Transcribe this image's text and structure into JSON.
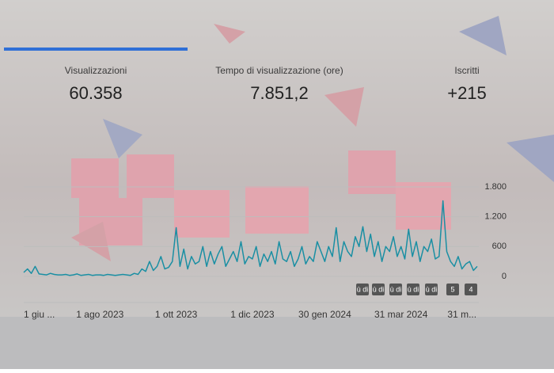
{
  "tabs": [
    {
      "label": "Visualizzazioni",
      "value": "60.358"
    },
    {
      "label": "Tempo di visualizzazione (ore)",
      "value": "7.851,2"
    },
    {
      "label": "Iscritti",
      "value": "+215"
    }
  ],
  "badges": [
    "ù di",
    "ù di",
    "ù di",
    "ù di",
    "ù di",
    "5",
    "4"
  ],
  "chart_data": {
    "type": "line",
    "color": "#1a8fa3",
    "grid": true,
    "ylim": [
      0,
      1800
    ],
    "yticks": [
      0,
      600,
      {
        "value": 1200,
        "label": "1.200"
      },
      {
        "value": 1800,
        "label": "1.800"
      }
    ],
    "categories": [
      "1 giu ...",
      null,
      null,
      null,
      null,
      null,
      null,
      null,
      null,
      null,
      null,
      null,
      null,
      null,
      null,
      null,
      null,
      null,
      null,
      null,
      "1 ago 2023",
      null,
      null,
      null,
      null,
      null,
      null,
      null,
      null,
      null,
      null,
      null,
      null,
      null,
      null,
      null,
      null,
      null,
      null,
      null,
      "1 ott 2023",
      null,
      null,
      null,
      null,
      null,
      null,
      null,
      null,
      null,
      null,
      null,
      null,
      null,
      null,
      null,
      null,
      null,
      null,
      null,
      "1 dic 2023",
      null,
      null,
      null,
      null,
      null,
      null,
      null,
      null,
      null,
      null,
      null,
      null,
      null,
      null,
      null,
      null,
      null,
      null,
      "30 gen 2024",
      null,
      null,
      null,
      null,
      null,
      null,
      null,
      null,
      null,
      null,
      null,
      null,
      null,
      null,
      null,
      null,
      null,
      null,
      null,
      "31 mar 2024",
      null,
      null,
      null,
      null,
      null,
      null,
      null,
      null,
      null,
      null,
      null,
      null,
      null,
      null,
      null,
      "31 m...",
      null,
      null,
      null,
      null
    ],
    "values": [
      80,
      150,
      60,
      200,
      50,
      40,
      30,
      60,
      40,
      30,
      30,
      40,
      20,
      30,
      50,
      20,
      30,
      40,
      20,
      30,
      30,
      20,
      40,
      30,
      20,
      30,
      40,
      30,
      20,
      60,
      40,
      150,
      100,
      300,
      120,
      200,
      400,
      150,
      180,
      300,
      980,
      200,
      550,
      150,
      400,
      250,
      300,
      600,
      200,
      500,
      250,
      450,
      600,
      200,
      350,
      500,
      300,
      700,
      250,
      400,
      350,
      600,
      200,
      450,
      300,
      500,
      250,
      700,
      350,
      300,
      500,
      200,
      350,
      600,
      250,
      400,
      300,
      700,
      500,
      300,
      600,
      400,
      980,
      300,
      700,
      500,
      400,
      800,
      600,
      1000,
      500,
      850,
      400,
      700,
      300,
      600,
      500,
      800,
      400,
      600,
      350,
      950,
      400,
      700,
      300,
      600,
      500,
      750,
      350,
      400,
      1520,
      500,
      300,
      200,
      400,
      150,
      250,
      300,
      120,
      200
    ]
  }
}
